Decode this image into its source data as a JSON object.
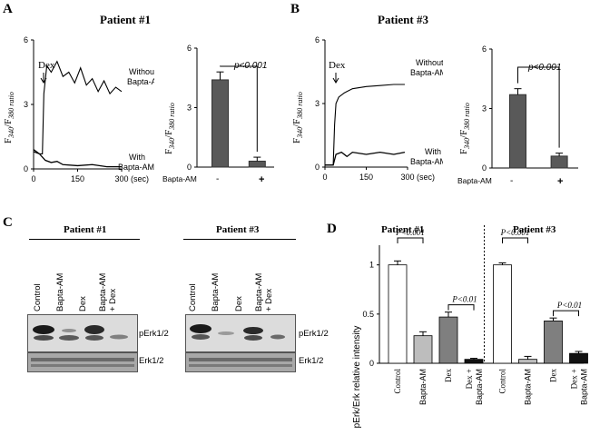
{
  "panels": {
    "A": {
      "letter": "A",
      "title": "Patient #1",
      "trace": {
        "ylabel_main": "F",
        "ylabel_sub1": "340",
        "ylabel_sep": "/F",
        "ylabel_sub2": "380 ratio",
        "yticks": [
          "0",
          "3",
          "6"
        ],
        "xticks": [
          "0",
          "150",
          "300"
        ],
        "xunit": "(sec)",
        "marker": "Dex",
        "line_labels": {
          "upper1": "Without",
          "upper2": "Bapta-AM",
          "lower1": "With",
          "lower2": "Bapta-AM"
        }
      },
      "bar": {
        "yticks": [
          "0",
          "3",
          "6"
        ],
        "ylabel_main": "F",
        "ylabel_sub1": "340",
        "ylabel_sep": "/F",
        "ylabel_sub2": "380 ratio",
        "pvalue": "p<0.001",
        "row_label": "Bapta-AM",
        "signs": [
          "-",
          "+"
        ]
      }
    },
    "B": {
      "letter": "B",
      "title": "Patient #3",
      "trace": {
        "ylabel_main": "F",
        "ylabel_sub1": "340",
        "ylabel_sep": "/F",
        "ylabel_sub2": "380 ratio",
        "yticks": [
          "0",
          "3",
          "6"
        ],
        "xticks": [
          "0",
          "150",
          "300"
        ],
        "xunit": "(sec)",
        "marker": "Dex",
        "line_labels": {
          "upper1": "Without",
          "upper2": "Bapta-AM",
          "lower1": "With",
          "lower2": "Bapta-AM"
        }
      },
      "bar": {
        "yticks": [
          "0",
          "3",
          "6"
        ],
        "ylabel_main": "F",
        "ylabel_sub1": "340",
        "ylabel_sep": "/F",
        "ylabel_sub2": "380 ratio",
        "pvalue": "p<0.001",
        "row_label": "Bapta-AM",
        "signs": [
          "-",
          "+"
        ]
      }
    },
    "C": {
      "letter": "C",
      "blot1_title": "Patient #1",
      "blot2_title": "Patient #3",
      "lanes1": [
        "Control",
        "Bapta-AM",
        "Dex",
        "Bapta-AM",
        "+ Dex"
      ],
      "lanes2": [
        "Control",
        "Bapta-AM",
        "Dex",
        "Bapta-AM",
        "+ Dex"
      ],
      "band_top": "pErk1/2",
      "band_bottom": "Erk1/2"
    },
    "D": {
      "letter": "D",
      "ylabel": "pErk/Erk relative intensity",
      "yticks": [
        "0",
        "0.5",
        "1"
      ],
      "group1_title": "Patient #1",
      "group2_title": "Patient #3",
      "pvalue1": "P<0.001",
      "pvalue2": "P<0.01",
      "xlabels": [
        "Control",
        "Bapta-AM",
        "Dex",
        "Dex +",
        "Bapta-AM"
      ]
    }
  },
  "chart_data": [
    {
      "type": "line",
      "title": "Patient #1",
      "xlabel": "(sec)",
      "ylabel": "F340/F380 ratio",
      "xlim": [
        0,
        300
      ],
      "ylim": [
        0,
        6
      ],
      "annotation": "Dex",
      "series": [
        {
          "name": "Without Bapta-AM",
          "x": [
            0,
            20,
            30,
            35,
            45,
            60,
            80,
            100,
            120,
            140,
            160,
            180,
            200,
            220,
            240,
            260,
            280,
            300
          ],
          "y": [
            0.8,
            0.7,
            0.7,
            3.5,
            4.8,
            4.5,
            5.0,
            4.3,
            4.5,
            4.0,
            4.7,
            3.9,
            4.2,
            3.6,
            4.1,
            3.5,
            3.8,
            3.6
          ]
        },
        {
          "name": "With Bapta-AM",
          "x": [
            0,
            20,
            40,
            60,
            80,
            100,
            150,
            200,
            250,
            300
          ],
          "y": [
            0.9,
            0.7,
            0.4,
            0.3,
            0.35,
            0.2,
            0.15,
            0.2,
            0.1,
            0.1
          ]
        }
      ]
    },
    {
      "type": "bar",
      "title": "Patient #1",
      "ylabel": "F340/F380 ratio",
      "ylim": [
        0,
        6
      ],
      "categories": [
        "-",
        "+"
      ],
      "values": [
        4.4,
        0.3
      ],
      "errors": [
        0.4,
        0.2
      ],
      "annotation": "p<0.001"
    },
    {
      "type": "line",
      "title": "Patient #3",
      "xlabel": "(sec)",
      "ylabel": "F340/F380 ratio",
      "xlim": [
        0,
        300
      ],
      "ylim": [
        0,
        6
      ],
      "annotation": "Dex",
      "series": [
        {
          "name": "Without Bapta-AM",
          "x": [
            0,
            30,
            35,
            40,
            50,
            70,
            100,
            150,
            200,
            250,
            290
          ],
          "y": [
            0.1,
            0.1,
            2.0,
            3.0,
            3.3,
            3.5,
            3.7,
            3.8,
            3.85,
            3.9,
            3.9
          ]
        },
        {
          "name": "With Bapta-AM",
          "x": [
            0,
            30,
            40,
            60,
            80,
            100,
            150,
            200,
            250,
            290
          ],
          "y": [
            0.1,
            0.1,
            0.6,
            0.7,
            0.5,
            0.7,
            0.6,
            0.7,
            0.6,
            0.7
          ]
        }
      ]
    },
    {
      "type": "bar",
      "title": "Patient #3",
      "ylabel": "F340/F380 ratio",
      "ylim": [
        0,
        6
      ],
      "categories": [
        "-",
        "+"
      ],
      "values": [
        3.7,
        0.6
      ],
      "errors": [
        0.3,
        0.15
      ],
      "annotation": "p<0.001"
    },
    {
      "type": "bar",
      "title": "Patient #1",
      "ylabel": "pErk/Erk relative intensity",
      "ylim": [
        0,
        1.2
      ],
      "categories": [
        "Control",
        "Bapta-AM",
        "Dex",
        "Dex + Bapta-AM"
      ],
      "values": [
        1.0,
        0.28,
        0.47,
        0.04
      ],
      "errors": [
        0.04,
        0.04,
        0.05,
        0.01
      ],
      "colors": [
        "#ffffff",
        "#bdbdbd",
        "#7f7f7f",
        "#111111"
      ]
    },
    {
      "type": "bar",
      "title": "Patient #3",
      "ylabel": "pErk/Erk relative intensity",
      "ylim": [
        0,
        1.2
      ],
      "categories": [
        "Control",
        "Bapta-AM",
        "Dex",
        "Dex + Bapta-AM"
      ],
      "values": [
        1.0,
        0.04,
        0.43,
        0.1
      ],
      "errors": [
        0.02,
        0.03,
        0.03,
        0.02
      ],
      "colors": [
        "#ffffff",
        "#bdbdbd",
        "#7f7f7f",
        "#111111"
      ]
    }
  ]
}
